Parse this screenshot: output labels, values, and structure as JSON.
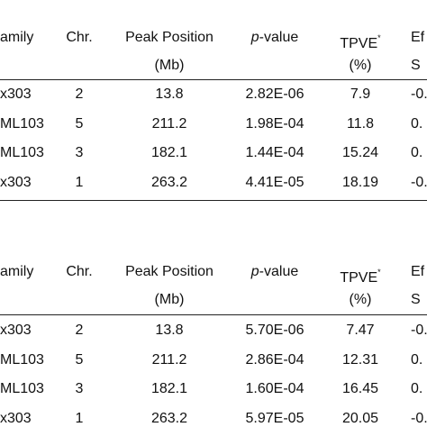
{
  "tables": [
    {
      "header": [
        "amily",
        "Chr.",
        "Peak Position",
        [
          "p",
          "-value"
        ],
        [
          "TPVE",
          "*"
        ],
        "Ef"
      ],
      "subheader": [
        "(Mb)",
        "(%)",
        "S"
      ],
      "rows": [
        [
          "x303",
          "2",
          "13.8",
          "2.82E-06",
          "7.9",
          "-0."
        ],
        [
          "ML103",
          "5",
          "211.2",
          "1.98E-04",
          "11.8",
          "0."
        ],
        [
          "ML103",
          "3",
          "182.1",
          "1.44E-04",
          "15.24",
          "0."
        ],
        [
          "x303",
          "1",
          "263.2",
          "4.41E-05",
          "18.19",
          "-0."
        ]
      ]
    },
    {
      "header": [
        "amily",
        "Chr.",
        "Peak Position",
        [
          "p",
          "-value"
        ],
        [
          "TPVE",
          "*"
        ],
        "Ef"
      ],
      "subheader": [
        "(Mb)",
        "(%)",
        "S"
      ],
      "rows": [
        [
          "x303",
          "2",
          "13.8",
          "5.70E-06",
          "7.47",
          "-0."
        ],
        [
          "ML103",
          "5",
          "211.2",
          "2.86E-04",
          "12.31",
          "0."
        ],
        [
          "ML103",
          "3",
          "182.1",
          "1.60E-04",
          "16.45",
          "0."
        ],
        [
          "x303",
          "1",
          "263.2",
          "5.97E-05",
          "20.05",
          "-0."
        ]
      ]
    }
  ]
}
